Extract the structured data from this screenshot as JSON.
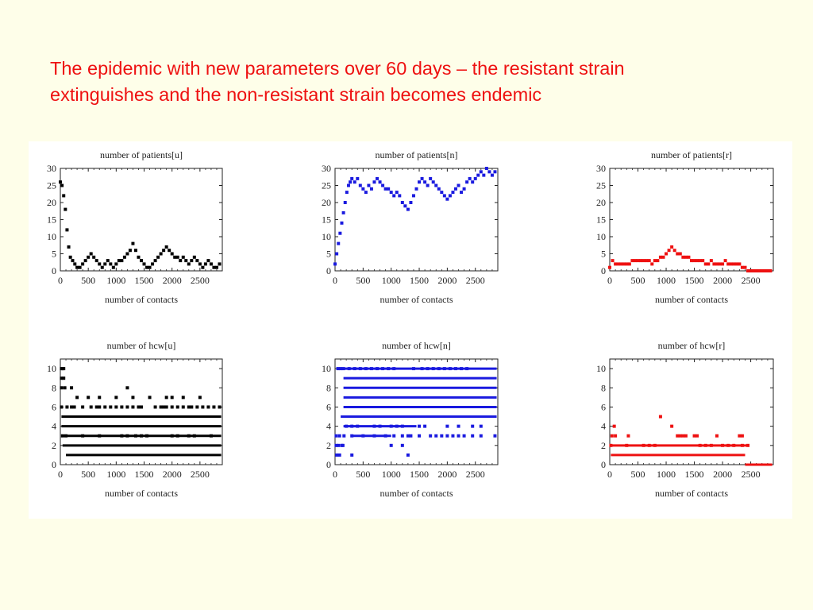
{
  "slide": {
    "title_line1": "The epidemic with new parameters over 60 days – the resistant strain",
    "title_line2": "extinguishes and the non-resistant strain becomes endemic",
    "title_color": "#ee1111"
  },
  "chart_data": [
    {
      "type": "scatter",
      "title": "number of patients[u]",
      "xlabel": "number of contacts",
      "ylabel": "",
      "xlim": [
        0,
        2900
      ],
      "ylim": [
        0,
        30
      ],
      "xticks": [
        0,
        500,
        1000,
        1500,
        2000,
        2500
      ],
      "yticks": [
        0,
        5,
        10,
        15,
        20,
        25,
        30
      ],
      "color": "#000000",
      "x": [
        0,
        30,
        60,
        90,
        120,
        150,
        180,
        220,
        260,
        300,
        350,
        400,
        450,
        500,
        550,
        600,
        650,
        700,
        750,
        800,
        850,
        900,
        950,
        1000,
        1050,
        1100,
        1150,
        1200,
        1250,
        1300,
        1350,
        1400,
        1450,
        1500,
        1550,
        1600,
        1650,
        1700,
        1750,
        1800,
        1850,
        1900,
        1950,
        2000,
        2050,
        2100,
        2150,
        2200,
        2250,
        2300,
        2350,
        2400,
        2450,
        2500,
        2550,
        2600,
        2650,
        2700,
        2750,
        2800,
        2850
      ],
      "y": [
        26,
        25,
        22,
        18,
        12,
        7,
        4,
        3,
        2,
        1,
        1,
        2,
        3,
        4,
        5,
        4,
        3,
        2,
        1,
        2,
        3,
        2,
        1,
        2,
        3,
        3,
        4,
        5,
        6,
        8,
        6,
        4,
        3,
        2,
        1,
        1,
        2,
        3,
        4,
        5,
        6,
        7,
        6,
        5,
        4,
        4,
        3,
        4,
        3,
        2,
        3,
        4,
        3,
        2,
        1,
        2,
        3,
        2,
        1,
        1,
        2
      ]
    },
    {
      "type": "scatter",
      "title": "number of patients[n]",
      "xlabel": "number of contacts",
      "ylabel": "",
      "xlim": [
        0,
        2900
      ],
      "ylim": [
        0,
        30
      ],
      "xticks": [
        0,
        500,
        1000,
        1500,
        2000,
        2500
      ],
      "yticks": [
        0,
        5,
        10,
        15,
        20,
        25,
        30
      ],
      "color": "#1a1adf",
      "x": [
        0,
        30,
        60,
        90,
        120,
        150,
        180,
        210,
        240,
        270,
        300,
        350,
        400,
        450,
        500,
        550,
        600,
        650,
        700,
        750,
        800,
        850,
        900,
        950,
        1000,
        1050,
        1100,
        1150,
        1200,
        1250,
        1300,
        1350,
        1400,
        1450,
        1500,
        1550,
        1600,
        1650,
        1700,
        1750,
        1800,
        1850,
        1900,
        1950,
        2000,
        2050,
        2100,
        2150,
        2200,
        2250,
        2300,
        2350,
        2400,
        2450,
        2500,
        2550,
        2600,
        2650,
        2700,
        2750,
        2800,
        2850
      ],
      "y": [
        2,
        5,
        8,
        11,
        14,
        17,
        20,
        23,
        25,
        26,
        27,
        26,
        27,
        25,
        24,
        23,
        25,
        24,
        26,
        27,
        26,
        25,
        24,
        24,
        23,
        22,
        23,
        22,
        20,
        19,
        18,
        20,
        22,
        24,
        26,
        27,
        26,
        25,
        27,
        26,
        25,
        24,
        23,
        22,
        21,
        22,
        23,
        24,
        25,
        23,
        24,
        26,
        27,
        26,
        27,
        28,
        29,
        28,
        30,
        29,
        28,
        29
      ]
    },
    {
      "type": "scatter",
      "title": "number of patients[r]",
      "xlabel": "number of contacts",
      "ylabel": "",
      "xlim": [
        0,
        2900
      ],
      "ylim": [
        0,
        30
      ],
      "xticks": [
        0,
        500,
        1000,
        1500,
        2000,
        2500
      ],
      "yticks": [
        0,
        5,
        10,
        15,
        20,
        25,
        30
      ],
      "color": "#ee1111",
      "x": [
        0,
        50,
        100,
        150,
        200,
        250,
        300,
        350,
        400,
        450,
        500,
        550,
        600,
        650,
        700,
        750,
        800,
        850,
        900,
        950,
        1000,
        1050,
        1100,
        1150,
        1200,
        1250,
        1300,
        1350,
        1400,
        1450,
        1500,
        1550,
        1600,
        1650,
        1700,
        1750,
        1800,
        1850,
        1900,
        1950,
        2000,
        2050,
        2100,
        2150,
        2200,
        2250,
        2300,
        2350,
        2400,
        2450,
        2500,
        2550,
        2600,
        2650,
        2700,
        2750,
        2800,
        2850
      ],
      "y": [
        1,
        3,
        2,
        2,
        2,
        2,
        2,
        2,
        3,
        3,
        3,
        3,
        3,
        3,
        3,
        2,
        3,
        3,
        4,
        4,
        5,
        6,
        7,
        6,
        5,
        5,
        4,
        4,
        4,
        3,
        3,
        3,
        3,
        3,
        2,
        2,
        3,
        2,
        2,
        2,
        2,
        3,
        2,
        2,
        2,
        2,
        2,
        1,
        1,
        0,
        0,
        0,
        0,
        0,
        0,
        0,
        0,
        0
      ]
    },
    {
      "type": "scatter",
      "title": "number of hcw[u]",
      "xlabel": "number of contacts",
      "ylabel": "",
      "xlim": [
        0,
        2900
      ],
      "ylim": [
        0,
        11
      ],
      "xticks": [
        0,
        500,
        1000,
        1500,
        2000,
        2500
      ],
      "yticks": [
        0,
        2,
        4,
        6,
        8,
        10
      ],
      "color": "#000000",
      "x": [
        20,
        40,
        60,
        20,
        60,
        20,
        80,
        200,
        300,
        500,
        700,
        1000,
        1200,
        1300,
        1600,
        1900,
        2000,
        2200,
        2500,
        20,
        120,
        200,
        250,
        400,
        550,
        650,
        700,
        800,
        900,
        1000,
        1100,
        1200,
        1300,
        1400,
        1450,
        1700,
        1800,
        1850,
        1900,
        2000,
        2100,
        2200,
        2300,
        2350,
        2450,
        2550,
        2650,
        2750,
        2850,
        40,
        100,
        400,
        700,
        1100,
        1200,
        1350,
        1450,
        1550,
        2000,
        2100,
        2300,
        2400,
        2700
      ],
      "y": [
        10,
        10,
        10,
        9,
        9,
        8,
        8,
        8,
        7,
        7,
        7,
        7,
        8,
        7,
        7,
        7,
        7,
        7,
        7,
        6,
        6,
        6,
        6,
        6,
        6,
        6,
        6,
        6,
        6,
        6,
        6,
        6,
        6,
        6,
        6,
        6,
        6,
        6,
        6,
        6,
        6,
        6,
        6,
        6,
        6,
        6,
        6,
        6,
        6,
        3,
        3,
        3,
        3,
        3,
        3,
        3,
        3,
        3,
        3,
        3,
        3,
        3,
        3
      ],
      "level_bands": [
        {
          "y": 5,
          "x_from": 20,
          "x_to": 2880
        },
        {
          "y": 4,
          "x_from": 20,
          "x_to": 2880
        },
        {
          "y": 3,
          "x_from": 20,
          "x_to": 2880
        },
        {
          "y": 2,
          "x_from": 40,
          "x_to": 2880
        },
        {
          "y": 1,
          "x_from": 100,
          "x_to": 2880
        }
      ]
    },
    {
      "type": "scatter",
      "title": "number of hcw[n]",
      "xlabel": "number of contacts",
      "ylabel": "",
      "xlim": [
        0,
        2900
      ],
      "ylim": [
        0,
        11
      ],
      "xticks": [
        0,
        500,
        1000,
        1500,
        2000,
        2500
      ],
      "yticks": [
        0,
        2,
        4,
        6,
        8,
        10
      ],
      "color": "#1a1adf",
      "x": [
        30,
        80,
        140,
        20,
        60,
        120,
        160,
        300,
        500,
        700,
        900,
        1050,
        1200,
        1300,
        1350,
        1500,
        1700,
        1800,
        1900,
        2000,
        2100,
        2200,
        2300,
        2450,
        2600,
        2850,
        200,
        300,
        400,
        700,
        800,
        1000,
        1100,
        1200,
        1500,
        1600,
        2000,
        2200,
        2450,
        2600,
        50,
        100,
        150,
        250,
        350,
        450,
        550,
        650,
        750,
        850,
        950,
        1050,
        1400,
        1550,
        1650,
        1750,
        1850,
        1950,
        2050,
        2150,
        2250,
        2350,
        1000,
        1200,
        1300,
        20,
        80,
        300
      ],
      "y": [
        1,
        1,
        2,
        2,
        2,
        2,
        3,
        3,
        3,
        3,
        3,
        3,
        3,
        3,
        3,
        3,
        3,
        3,
        3,
        3,
        3,
        3,
        3,
        3,
        3,
        3,
        4,
        4,
        4,
        4,
        4,
        4,
        4,
        4,
        4,
        4,
        4,
        4,
        4,
        4,
        10,
        10,
        10,
        10,
        10,
        10,
        10,
        10,
        10,
        10,
        10,
        10,
        10,
        10,
        10,
        10,
        10,
        10,
        10,
        10,
        10,
        10,
        2,
        2,
        1,
        3,
        3,
        1
      ],
      "level_bands": [
        {
          "y": 10,
          "x_from": 150,
          "x_to": 2880
        },
        {
          "y": 9,
          "x_from": 150,
          "x_to": 2880
        },
        {
          "y": 8,
          "x_from": 150,
          "x_to": 2880
        },
        {
          "y": 7,
          "x_from": 150,
          "x_to": 2880
        },
        {
          "y": 6,
          "x_from": 150,
          "x_to": 2880
        },
        {
          "y": 5,
          "x_from": 100,
          "x_to": 2880
        },
        {
          "y": 4,
          "x_from": 150,
          "x_to": 1450
        },
        {
          "y": 3,
          "x_from": 300,
          "x_to": 1000
        }
      ]
    },
    {
      "type": "scatter",
      "title": "number of hcw[r]",
      "xlabel": "number of contacts",
      "ylabel": "",
      "xlim": [
        0,
        2900
      ],
      "ylim": [
        0,
        11
      ],
      "xticks": [
        0,
        500,
        1000,
        1500,
        2000,
        2500
      ],
      "yticks": [
        0,
        2,
        4,
        6,
        8,
        10
      ],
      "color": "#ee1111",
      "x": [
        80,
        40,
        100,
        330,
        900,
        1100,
        1200,
        1250,
        1300,
        1350,
        1500,
        1550,
        1900,
        2300,
        2350,
        20,
        300,
        600,
        700,
        800,
        1600,
        1700,
        1800,
        2000,
        2100,
        2200,
        2350,
        2450
      ],
      "y": [
        4,
        3,
        3,
        3,
        5,
        4,
        3,
        3,
        3,
        3,
        3,
        3,
        3,
        3,
        3,
        2,
        2,
        2,
        2,
        2,
        2,
        2,
        2,
        2,
        2,
        2,
        2,
        2
      ],
      "level_bands": [
        {
          "y": 2,
          "x_from": 20,
          "x_to": 2450
        },
        {
          "y": 1,
          "x_from": 20,
          "x_to": 2400
        },
        {
          "y": 0,
          "x_from": 2400,
          "x_to": 2880
        }
      ]
    }
  ]
}
